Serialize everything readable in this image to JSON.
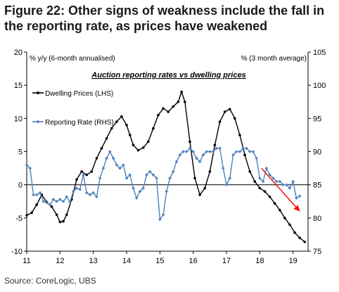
{
  "figure": {
    "title": "Figure 22: Other signs of weakness include the fall in the reporting rate, as prices have weakened",
    "source": "Source:  CoreLogic, UBS"
  },
  "chart_data": {
    "type": "line",
    "title": "Auction reporting rates vs dwelling prices",
    "left_axis_label": "% y/y (6-month annualised)",
    "right_axis_label": "% (3 month average)",
    "x_ticks": [
      "11",
      "12",
      "13",
      "14",
      "15",
      "16",
      "17",
      "18",
      "19"
    ],
    "x_range": [
      2011,
      2019.45
    ],
    "left_ylim": [
      -10,
      20
    ],
    "left_ticks": [
      -10,
      -5,
      0,
      5,
      10,
      15,
      20
    ],
    "right_ylim": [
      75,
      105
    ],
    "right_ticks": [
      75,
      80,
      85,
      90,
      95,
      100,
      105
    ],
    "legend_placement": "upper-left",
    "grid": false,
    "series": [
      {
        "name": "Dwelling Prices (LHS)",
        "axis": "left",
        "color": "#000000",
        "x": [
          2011.0,
          2011.15,
          2011.3,
          2011.45,
          2011.6,
          2011.75,
          2011.9,
          2012.0,
          2012.1,
          2012.2,
          2012.35,
          2012.5,
          2012.65,
          2012.8,
          2012.95,
          2013.1,
          2013.25,
          2013.4,
          2013.55,
          2013.7,
          2013.85,
          2014.0,
          2014.1,
          2014.2,
          2014.35,
          2014.5,
          2014.65,
          2014.8,
          2014.95,
          2015.1,
          2015.25,
          2015.4,
          2015.55,
          2015.65,
          2015.75,
          2015.9,
          2016.05,
          2016.2,
          2016.35,
          2016.5,
          2016.65,
          2016.8,
          2016.95,
          2017.1,
          2017.25,
          2017.4,
          2017.55,
          2017.7,
          2017.85,
          2018.0,
          2018.15,
          2018.3,
          2018.45,
          2018.6,
          2018.75,
          2018.9,
          2019.05,
          2019.2,
          2019.35
        ],
        "y": [
          -4.6,
          -4.2,
          -3.0,
          -1.5,
          -2.6,
          -3.3,
          -4.5,
          -5.6,
          -5.5,
          -4.5,
          -2.2,
          0.8,
          2.0,
          1.5,
          2.0,
          4.0,
          5.5,
          7.0,
          8.5,
          9.5,
          10.3,
          9.0,
          7.5,
          6.0,
          5.2,
          5.6,
          6.5,
          8.5,
          10.5,
          11.5,
          11.0,
          11.8,
          12.5,
          14.0,
          12.5,
          6.5,
          1.0,
          -1.5,
          -0.5,
          2.0,
          6.0,
          9.5,
          11.0,
          11.4,
          10.0,
          7.5,
          4.5,
          2.0,
          0.5,
          -0.5,
          -1.0,
          -1.8,
          -2.8,
          -3.8,
          -5.0,
          -6.0,
          -7.2,
          -8.0,
          -8.6
        ]
      },
      {
        "name": "Reporting Rate (RHS)",
        "axis": "right",
        "color": "#4f81bd",
        "x": [
          2011.0,
          2011.1,
          2011.2,
          2011.3,
          2011.4,
          2011.5,
          2011.6,
          2011.7,
          2011.8,
          2011.9,
          2012.0,
          2012.1,
          2012.2,
          2012.3,
          2012.4,
          2012.5,
          2012.6,
          2012.7,
          2012.8,
          2012.9,
          2013.0,
          2013.1,
          2013.2,
          2013.3,
          2013.4,
          2013.5,
          2013.6,
          2013.7,
          2013.8,
          2013.9,
          2014.0,
          2014.1,
          2014.2,
          2014.3,
          2014.4,
          2014.5,
          2014.6,
          2014.7,
          2014.8,
          2014.9,
          2015.0,
          2015.1,
          2015.2,
          2015.3,
          2015.4,
          2015.5,
          2015.6,
          2015.7,
          2015.8,
          2015.9,
          2016.0,
          2016.1,
          2016.2,
          2016.3,
          2016.4,
          2016.5,
          2016.6,
          2016.7,
          2016.8,
          2016.9,
          2017.0,
          2017.1,
          2017.2,
          2017.3,
          2017.4,
          2017.5,
          2017.6,
          2017.7,
          2017.8,
          2017.9,
          2018.0,
          2018.1,
          2018.2,
          2018.3,
          2018.4,
          2018.5,
          2018.6,
          2018.7,
          2018.8,
          2018.9,
          2019.0,
          2019.1,
          2019.2
        ],
        "y": [
          88.0,
          87.5,
          83.5,
          83.5,
          83.8,
          82.5,
          82.3,
          82.0,
          82.8,
          82.5,
          82.8,
          82.5,
          83.2,
          82.4,
          84.0,
          84.5,
          84.3,
          86.5,
          83.8,
          83.5,
          83.8,
          83.2,
          86.0,
          87.5,
          89.0,
          90.0,
          89.0,
          88.0,
          87.5,
          88.0,
          86.0,
          86.5,
          84.5,
          83.0,
          84.0,
          84.5,
          86.5,
          87.0,
          86.5,
          86.0,
          79.8,
          80.5,
          84.0,
          86.0,
          87.0,
          88.5,
          89.5,
          90.0,
          90.0,
          90.5,
          90.0,
          89.0,
          88.5,
          89.5,
          90.0,
          90.0,
          90.0,
          90.5,
          90.5,
          87.5,
          85.0,
          86.0,
          89.5,
          90.0,
          90.0,
          90.5,
          90.5,
          90.0,
          90.0,
          89.0,
          86.0,
          85.5,
          87.5,
          86.5,
          86.0,
          85.5,
          85.5,
          85.0,
          85.0,
          84.5,
          85.5,
          83.0,
          83.3
        ]
      }
    ],
    "annotation": {
      "type": "arrow",
      "color": "#ff0000",
      "from": {
        "x": 2018.05,
        "y_right": 87.5
      },
      "to": {
        "x": 2019.2,
        "y_right": 81.0
      }
    }
  }
}
